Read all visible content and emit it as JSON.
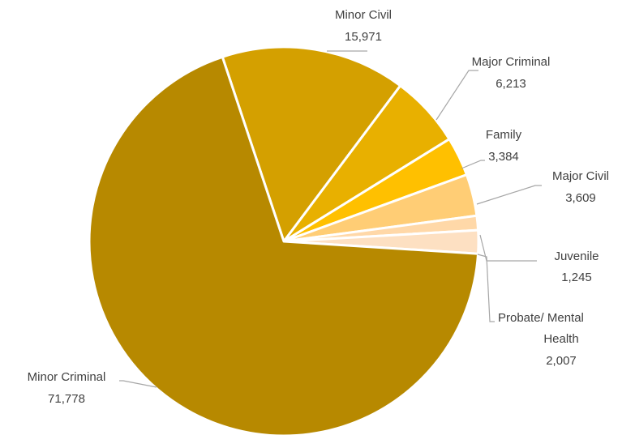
{
  "chart_data": {
    "type": "pie",
    "title": "",
    "slices": [
      {
        "name": "Minor Civil",
        "value": 15971,
        "value_label": "15,971",
        "color": "#d4a000"
      },
      {
        "name": "Major Criminal",
        "value": 6213,
        "value_label": "6,213",
        "color": "#e8b000"
      },
      {
        "name": "Family",
        "value": 3384,
        "value_label": "3,384",
        "color": "#ffc000"
      },
      {
        "name": "Major Civil",
        "value": 3609,
        "value_label": "3,609",
        "color": "#ffcd75"
      },
      {
        "name": "Juvenile",
        "value": 1245,
        "value_label": "1,245",
        "color": "#ffd8a8"
      },
      {
        "name": "Probate/ Mental Health",
        "value": 2007,
        "value_label": "2,007",
        "color": "#fde0c2"
      },
      {
        "name": "Minor Criminal",
        "value": 71778,
        "value_label": "71,778",
        "color": "#b78900"
      }
    ],
    "legend": "none",
    "data_labels": "outside with leader lines"
  }
}
